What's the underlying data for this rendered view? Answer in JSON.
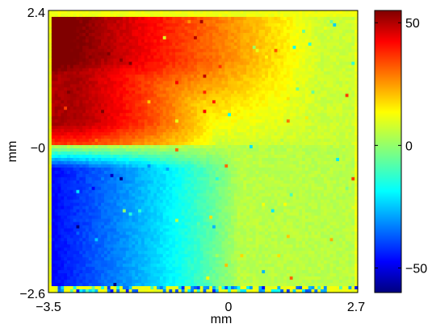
{
  "chart_data": {
    "type": "heatmap",
    "title": "",
    "xlabel": "mm",
    "ylabel": "mm",
    "xlim": [
      -3.5,
      2.7
    ],
    "ylim": [
      -2.6,
      2.4
    ],
    "xticks": [
      {
        "value": -3.5,
        "label": "−3.5"
      },
      {
        "value": 0,
        "label": "0"
      },
      {
        "value": 2.7,
        "label": "2.7"
      }
    ],
    "yticks": [
      {
        "value": 2.4,
        "label": "2.4"
      },
      {
        "value": 0,
        "label": "−0"
      },
      {
        "value": -2.6,
        "label": "−2.6"
      }
    ],
    "colorbar": {
      "colormap": "jet",
      "range": [
        -60,
        55
      ],
      "ticks": [
        {
          "value": 50,
          "label": "50"
        },
        {
          "value": 0,
          "label": "0"
        },
        {
          "value": -50,
          "label": "−50"
        }
      ]
    },
    "field_description": "Upper-left quadrant high (~+40 to +50, red); lower-left quadrant low (~-40 to -50, blue); right half near 0 to +15 (green/yellow); sharp boundary near y=0 on the left side, smooth angular transition elsewhere.",
    "grid": false
  }
}
